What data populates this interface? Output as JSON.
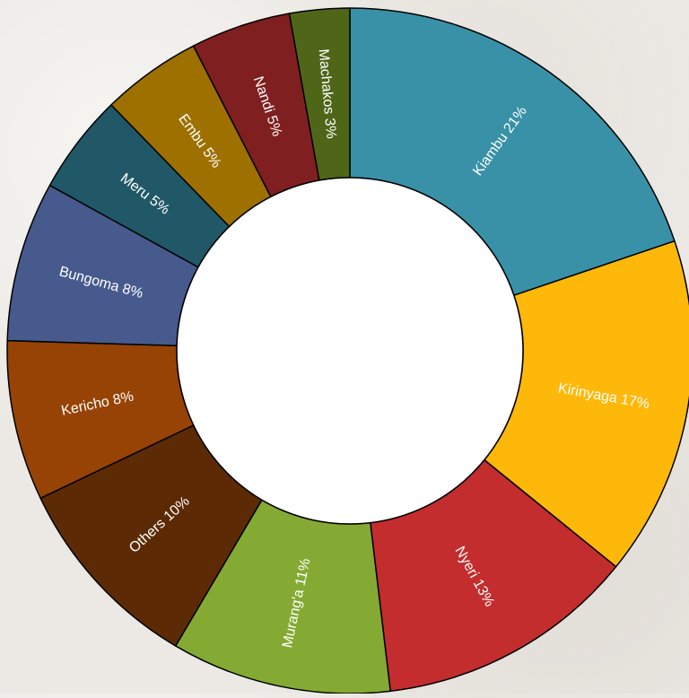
{
  "chart_data": {
    "type": "pie",
    "variant": "donut",
    "slices": [
      {
        "label": "Kiambu",
        "value": 21,
        "display": "Kiambu 21%",
        "color": "#3891a7"
      },
      {
        "label": "Kirinyaga",
        "value": 17,
        "display": "Kirinyaga 17%",
        "color": "#feb80a"
      },
      {
        "label": "Nyeri",
        "value": 13,
        "display": "Nyeri 13%",
        "color": "#c32d2e"
      },
      {
        "label": "Murang'a",
        "value": 11,
        "display": "Murang'a 11%",
        "color": "#84aa33"
      },
      {
        "label": "Others",
        "value": 10,
        "display": "Others 10%",
        "color": "#5c2b05"
      },
      {
        "label": "Kericho",
        "value": 8,
        "display": "Kericho 8%",
        "color": "#964305"
      },
      {
        "label": "Bungoma",
        "value": 8,
        "display": "Bungoma 8%",
        "color": "#475a8d"
      },
      {
        "label": "Meru",
        "value": 5,
        "display": "Meru 5%",
        "color": "#215867"
      },
      {
        "label": "Embu",
        "value": 5,
        "display": "Embu 5%",
        "color": "#9d7000"
      },
      {
        "label": "Nandi",
        "value": 5,
        "display": "Nandi 5%",
        "color": "#801f20"
      },
      {
        "label": "Machakos",
        "value": 3,
        "display": "Machakos 3%",
        "color": "#4f6619"
      }
    ],
    "label_color": "#ffffff",
    "hole_color": "#ffffff",
    "stroke_color": "#000000",
    "legend": "none",
    "title": ""
  }
}
